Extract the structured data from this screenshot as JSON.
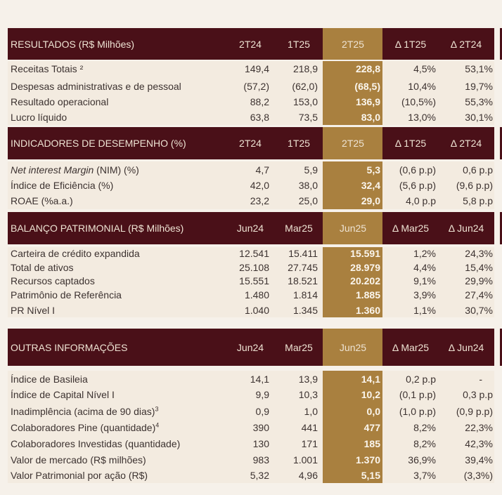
{
  "colors": {
    "header": "#4a1018",
    "highlight": "#a9803f",
    "row_bg": "#f3ebe0",
    "page_bg": "#f6f1ea"
  },
  "sections": [
    {
      "title": "RESULTADOS (R$ Milhões)",
      "columns": [
        "2T24",
        "1T25",
        "2T25",
        "Δ 1T25",
        "Δ 2T24"
      ],
      "rows": [
        {
          "label": "Receitas Totais ²",
          "values": [
            "149,4",
            "218,9",
            "228,8",
            "4,5%",
            "53,1%"
          ]
        },
        {
          "label": "Despesas administrativas e de pessoal",
          "values": [
            "(57,2)",
            "(62,0)",
            "(68,5)",
            "10,4%",
            "19,7%"
          ]
        },
        {
          "label": "Resultado operacional",
          "values": [
            "88,2",
            "153,0",
            "136,9",
            "(10,5%)",
            "55,3%"
          ]
        },
        {
          "label": "Lucro líquido",
          "values": [
            "63,8",
            "73,5",
            "83,0",
            "13,0%",
            "30,1%"
          ]
        }
      ]
    },
    {
      "title": "INDICADORES DE DESEMPENHO (%)",
      "columns": [
        "2T24",
        "1T25",
        "2T25",
        "Δ 1T25",
        "Δ 2T24"
      ],
      "rows": [
        {
          "label_italic": "Net interest Margin",
          "label": " (NIM) (%)",
          "values": [
            "4,7",
            "5,9",
            "5,3",
            "(0,6 p.p)",
            "0,6 p.p"
          ]
        },
        {
          "label": "Índice de Eficiência (%)",
          "values": [
            "42,0",
            "38,0",
            "32,4",
            "(5,6 p.p)",
            "(9,6 p.p)"
          ]
        },
        {
          "label": "ROAE (%a.a.)",
          "values": [
            "23,2",
            "25,0",
            "29,0",
            "4,0 p.p",
            "5,8 p.p"
          ]
        }
      ]
    },
    {
      "title": "BALANÇO PATRIMONIAL (R$ Milhões)",
      "columns": [
        "Jun24",
        "Mar25",
        "Jun25",
        "Δ Mar25",
        "Δ Jun24"
      ],
      "rows": [
        {
          "label": "Carteira de crédito expandida",
          "values": [
            "12.541",
            "15.411",
            "15.591",
            "1,2%",
            "24,3%"
          ]
        },
        {
          "label": "Total de ativos",
          "values": [
            "25.108",
            "27.745",
            "28.979",
            "4,4%",
            "15,4%"
          ]
        },
        {
          "label": "Recursos captados",
          "values": [
            "15.551",
            "18.521",
            "20.202",
            "9,1%",
            "29,9%"
          ]
        },
        {
          "label": "Patrimônio de Referência",
          "values": [
            "1.480",
            "1.814",
            "1.885",
            "3,9%",
            "27,4%"
          ]
        },
        {
          "label": "PR Nível I",
          "values": [
            "1.040",
            "1.345",
            "1.360",
            "1,1%",
            "30,7%"
          ]
        }
      ]
    },
    {
      "title": "OUTRAS INFORMAÇÕES",
      "columns": [
        "Jun24",
        "Mar25",
        "Jun25",
        "Δ Mar25",
        "Δ Jun24"
      ],
      "rows": [
        {
          "label": "Índice de Basileia",
          "values": [
            "14,1",
            "13,9",
            "14,1",
            "0,2 p.p",
            "-"
          ]
        },
        {
          "label": "Índice de Capital Nível I",
          "values": [
            "9,9",
            "10,3",
            "10,2",
            "(0,1 p.p)",
            "0,3 p.p"
          ]
        },
        {
          "label": "Inadimplência (acima de 90 dias)",
          "sup": "3",
          "values": [
            "0,9",
            "1,0",
            "0,0",
            "(1,0 p.p)",
            "(0,9 p.p)"
          ]
        },
        {
          "label": "Colaboradores Pine (quantidade)",
          "sup": "4",
          "values": [
            "390",
            "441",
            "477",
            "8,2%",
            "22,3%"
          ]
        },
        {
          "label": "Colaboradores Investidas (quantidade)",
          "values": [
            "130",
            "171",
            "185",
            "8,2%",
            "42,3%"
          ]
        },
        {
          "label": "Valor de mercado (R$ milhões)",
          "values": [
            "983",
            "1.001",
            "1.370",
            "36,9%",
            "39,4%"
          ]
        },
        {
          "label": "Valor Patrimonial por ação (R$)",
          "values": [
            "5,32",
            "4,96",
            "5,15",
            "3,7%",
            "(3,3%)"
          ]
        }
      ]
    }
  ]
}
